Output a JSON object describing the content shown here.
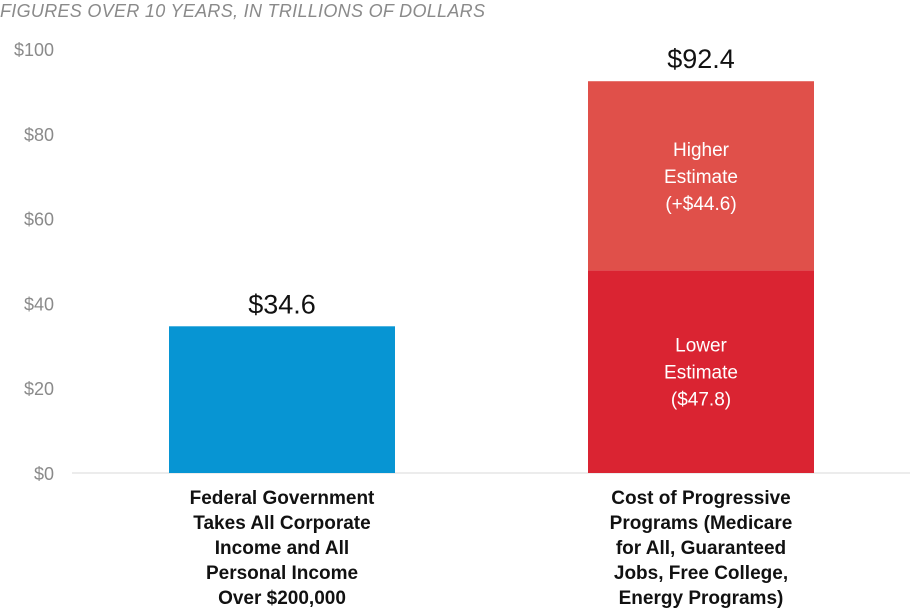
{
  "chart_data": {
    "type": "bar",
    "subtitle": "FIGURES OVER 10 YEARS, IN TRILLIONS OF DOLLARS",
    "ylim": [
      0,
      100
    ],
    "yticks": [
      0,
      20,
      40,
      60,
      80,
      100
    ],
    "ytick_labels": [
      "$0",
      "$20",
      "$40",
      "$60",
      "$80",
      "$100"
    ],
    "grid": false,
    "categories": [
      {
        "lines": [
          "Federal Government",
          "Takes All Corporate",
          "Income and All",
          "Personal Income",
          "Over $200,000"
        ],
        "total_label": "$34.6",
        "segments": [
          {
            "value": 34.6,
            "color": "#0795d3",
            "label_lines": []
          }
        ]
      },
      {
        "lines": [
          "Cost of Progressive",
          "Programs (Medicare",
          "for All, Guaranteed",
          "Jobs, Free College,",
          "Energy Programs)"
        ],
        "total_label": "$92.4",
        "segments": [
          {
            "value": 47.8,
            "color": "#da2432",
            "label_lines": [
              "Lower",
              "Estimate",
              "($47.8)"
            ]
          },
          {
            "value": 44.6,
            "color": "#e0504a",
            "label_lines": [
              "Higher",
              "Estimate",
              "(+$44.6)"
            ]
          }
        ]
      }
    ]
  }
}
